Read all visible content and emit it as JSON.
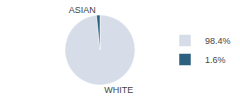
{
  "chart_data": {
    "type": "pie",
    "categories": [
      "WHITE",
      "ASIAN"
    ],
    "values": [
      98.4,
      1.6
    ],
    "value_labels": [
      "98.4%",
      "1.6%"
    ],
    "colors": [
      "#d6dde8",
      "#2e6080"
    ],
    "legend": "right"
  }
}
